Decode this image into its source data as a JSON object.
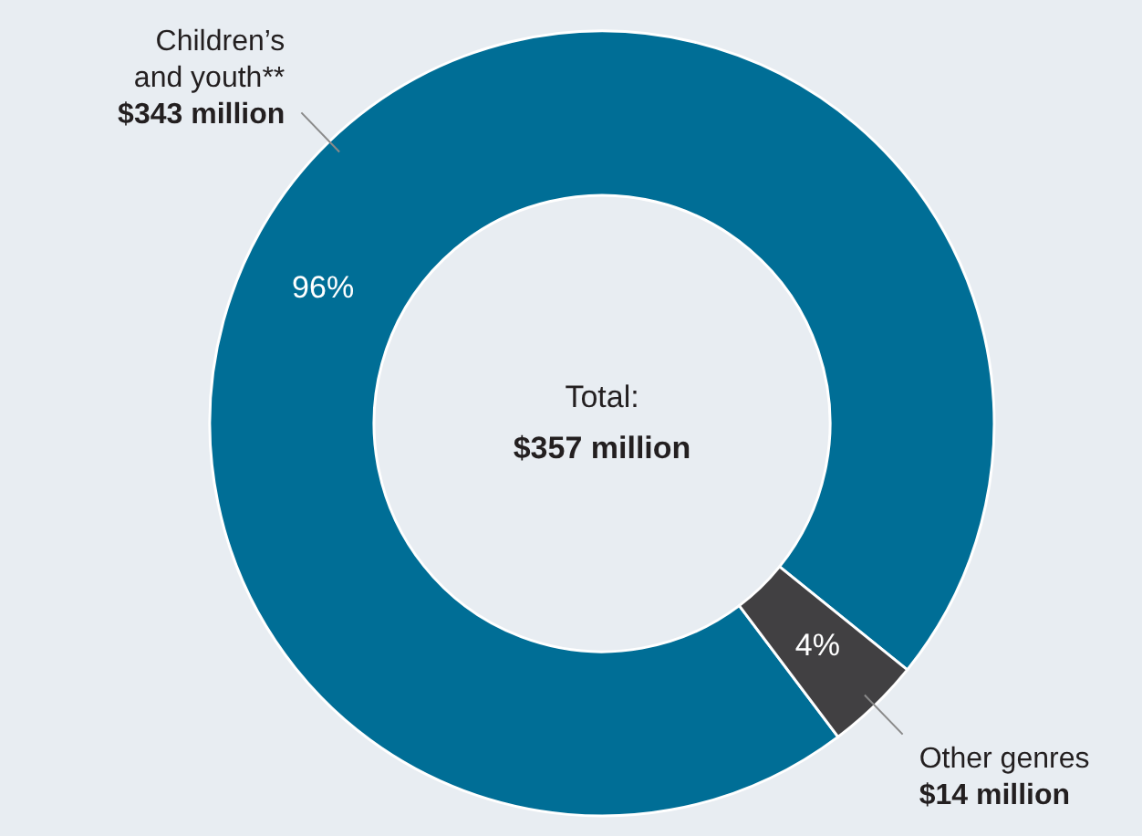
{
  "chart_data": {
    "type": "donut",
    "categories": [
      "Children’s and youth**",
      "Other genres"
    ],
    "values": [
      343,
      14
    ],
    "colors": [
      "#006e96",
      "#414042"
    ],
    "value_labels": [
      "$343 million",
      "$14 million"
    ],
    "annotations": [
      {
        "text": "96%",
        "x": "Children’s and youth**"
      },
      {
        "text": "4%",
        "x": "Other genres"
      },
      "Total:",
      "$357 million"
    ]
  }
}
